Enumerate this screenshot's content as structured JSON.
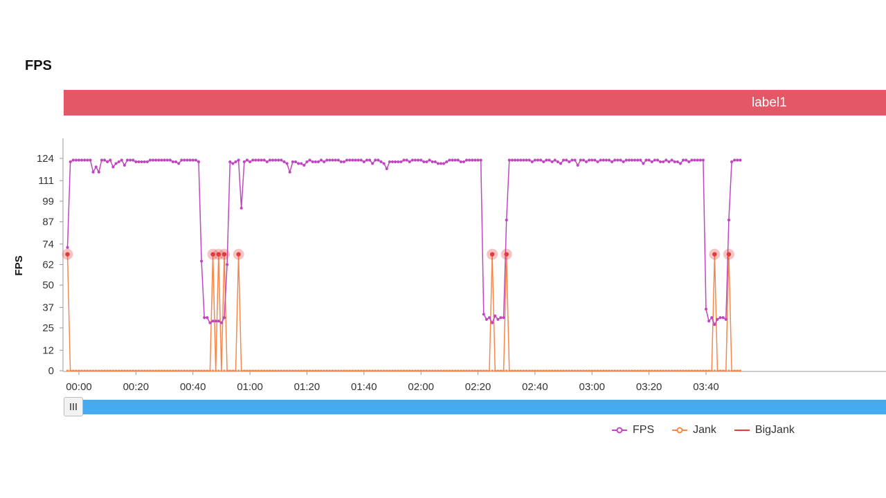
{
  "header": {
    "title": "FPS"
  },
  "label_bar": {
    "text": "label1",
    "color": "#e45766"
  },
  "legend": [
    {
      "name": "FPS",
      "color": "#c046c0",
      "marker": "circle"
    },
    {
      "name": "Jank",
      "color": "#f5874a",
      "marker": "circle"
    },
    {
      "name": "BigJank",
      "color": "#e03c3c",
      "marker": "line"
    }
  ],
  "chart_data": {
    "type": "line",
    "ylabel": "FPS",
    "xlabel": "",
    "yticks": [
      0,
      12,
      25,
      37,
      50,
      62,
      74,
      87,
      99,
      111,
      124
    ],
    "ylim": [
      0,
      124
    ],
    "x_tick_labels": [
      "00:00",
      "00:20",
      "00:40",
      "01:00",
      "01:20",
      "01:40",
      "02:00",
      "02:20",
      "02:40",
      "03:00",
      "03:20",
      "03:40"
    ],
    "x_tick_seconds": [
      0,
      20,
      40,
      60,
      80,
      100,
      120,
      140,
      160,
      180,
      200,
      220
    ],
    "xlim_seconds": [
      -4,
      228
    ],
    "grid": false,
    "legend_position": "bottom-right",
    "series": [
      {
        "name": "FPS",
        "points": [
          [
            -4,
            72
          ],
          [
            -3,
            122
          ],
          [
            -2,
            123
          ],
          [
            -1,
            123
          ],
          [
            0,
            123
          ],
          [
            1,
            123
          ],
          [
            2,
            123
          ],
          [
            3,
            123
          ],
          [
            4,
            123
          ],
          [
            5,
            116
          ],
          [
            6,
            119
          ],
          [
            7,
            116
          ],
          [
            8,
            123
          ],
          [
            9,
            123
          ],
          [
            10,
            122
          ],
          [
            11,
            123
          ],
          [
            12,
            119
          ],
          [
            13,
            121
          ],
          [
            14,
            122
          ],
          [
            15,
            123
          ],
          [
            16,
            120
          ],
          [
            17,
            123
          ],
          [
            18,
            123
          ],
          [
            19,
            123
          ],
          [
            20,
            122
          ],
          [
            21,
            122
          ],
          [
            22,
            122
          ],
          [
            23,
            122
          ],
          [
            24,
            122
          ],
          [
            25,
            123
          ],
          [
            26,
            123
          ],
          [
            27,
            123
          ],
          [
            28,
            123
          ],
          [
            29,
            123
          ],
          [
            30,
            123
          ],
          [
            31,
            123
          ],
          [
            32,
            123
          ],
          [
            33,
            122
          ],
          [
            34,
            122
          ],
          [
            35,
            121
          ],
          [
            36,
            123
          ],
          [
            37,
            123
          ],
          [
            38,
            123
          ],
          [
            39,
            123
          ],
          [
            40,
            123
          ],
          [
            41,
            123
          ],
          [
            42,
            122
          ],
          [
            43,
            64
          ],
          [
            44,
            31
          ],
          [
            45,
            31
          ],
          [
            46,
            28
          ],
          [
            47,
            29
          ],
          [
            48,
            29
          ],
          [
            49,
            29
          ],
          [
            50,
            28
          ],
          [
            51,
            31
          ],
          [
            52,
            62
          ],
          [
            53,
            122
          ],
          [
            54,
            121
          ],
          [
            55,
            122
          ],
          [
            56,
            123
          ],
          [
            57,
            95
          ],
          [
            58,
            122
          ],
          [
            59,
            123
          ],
          [
            60,
            122
          ],
          [
            61,
            123
          ],
          [
            62,
            123
          ],
          [
            63,
            123
          ],
          [
            64,
            123
          ],
          [
            65,
            123
          ],
          [
            66,
            122
          ],
          [
            67,
            123
          ],
          [
            68,
            123
          ],
          [
            69,
            123
          ],
          [
            70,
            123
          ],
          [
            71,
            123
          ],
          [
            72,
            122
          ],
          [
            73,
            121
          ],
          [
            74,
            116
          ],
          [
            75,
            122
          ],
          [
            76,
            122
          ],
          [
            77,
            121
          ],
          [
            78,
            121
          ],
          [
            79,
            120
          ],
          [
            80,
            122
          ],
          [
            81,
            123
          ],
          [
            82,
            122
          ],
          [
            83,
            122
          ],
          [
            84,
            122
          ],
          [
            85,
            123
          ],
          [
            86,
            122
          ],
          [
            87,
            123
          ],
          [
            88,
            123
          ],
          [
            89,
            123
          ],
          [
            90,
            123
          ],
          [
            91,
            123
          ],
          [
            92,
            122
          ],
          [
            93,
            122
          ],
          [
            94,
            123
          ],
          [
            95,
            123
          ],
          [
            96,
            123
          ],
          [
            97,
            123
          ],
          [
            98,
            123
          ],
          [
            99,
            123
          ],
          [
            100,
            122
          ],
          [
            101,
            123
          ],
          [
            102,
            123
          ],
          [
            103,
            121
          ],
          [
            104,
            123
          ],
          [
            105,
            123
          ],
          [
            106,
            122
          ],
          [
            107,
            121
          ],
          [
            108,
            118
          ],
          [
            109,
            122
          ],
          [
            110,
            122
          ],
          [
            111,
            122
          ],
          [
            112,
            122
          ],
          [
            113,
            122
          ],
          [
            114,
            123
          ],
          [
            115,
            123
          ],
          [
            116,
            122
          ],
          [
            117,
            123
          ],
          [
            118,
            123
          ],
          [
            119,
            123
          ],
          [
            120,
            123
          ],
          [
            121,
            122
          ],
          [
            122,
            122
          ],
          [
            123,
            123
          ],
          [
            124,
            122
          ],
          [
            125,
            122
          ],
          [
            126,
            121
          ],
          [
            127,
            121
          ],
          [
            128,
            121
          ],
          [
            129,
            122
          ],
          [
            130,
            123
          ],
          [
            131,
            123
          ],
          [
            132,
            123
          ],
          [
            133,
            123
          ],
          [
            134,
            122
          ],
          [
            135,
            122
          ],
          [
            136,
            123
          ],
          [
            137,
            123
          ],
          [
            138,
            123
          ],
          [
            139,
            123
          ],
          [
            140,
            123
          ],
          [
            141,
            123
          ],
          [
            142,
            33
          ],
          [
            143,
            30
          ],
          [
            144,
            31
          ],
          [
            145,
            28
          ],
          [
            146,
            32
          ],
          [
            147,
            30
          ],
          [
            148,
            31
          ],
          [
            149,
            31
          ],
          [
            150,
            88
          ],
          [
            151,
            123
          ],
          [
            152,
            123
          ],
          [
            153,
            123
          ],
          [
            154,
            123
          ],
          [
            155,
            123
          ],
          [
            156,
            123
          ],
          [
            157,
            123
          ],
          [
            158,
            123
          ],
          [
            159,
            122
          ],
          [
            160,
            123
          ],
          [
            161,
            123
          ],
          [
            162,
            123
          ],
          [
            163,
            122
          ],
          [
            164,
            123
          ],
          [
            165,
            123
          ],
          [
            166,
            122
          ],
          [
            167,
            123
          ],
          [
            168,
            122
          ],
          [
            169,
            121
          ],
          [
            170,
            123
          ],
          [
            171,
            123
          ],
          [
            172,
            122
          ],
          [
            173,
            123
          ],
          [
            174,
            123
          ],
          [
            175,
            120
          ],
          [
            176,
            123
          ],
          [
            177,
            123
          ],
          [
            178,
            122
          ],
          [
            179,
            123
          ],
          [
            180,
            123
          ],
          [
            181,
            123
          ],
          [
            182,
            122
          ],
          [
            183,
            123
          ],
          [
            184,
            123
          ],
          [
            185,
            123
          ],
          [
            186,
            123
          ],
          [
            187,
            122
          ],
          [
            188,
            123
          ],
          [
            189,
            123
          ],
          [
            190,
            123
          ],
          [
            191,
            122
          ],
          [
            192,
            123
          ],
          [
            193,
            123
          ],
          [
            194,
            123
          ],
          [
            195,
            123
          ],
          [
            196,
            123
          ],
          [
            197,
            123
          ],
          [
            198,
            121
          ],
          [
            199,
            123
          ],
          [
            200,
            123
          ],
          [
            201,
            122
          ],
          [
            202,
            123
          ],
          [
            203,
            123
          ],
          [
            204,
            122
          ],
          [
            205,
            122
          ],
          [
            206,
            123
          ],
          [
            207,
            122
          ],
          [
            208,
            123
          ],
          [
            209,
            122
          ],
          [
            210,
            122
          ],
          [
            211,
            121
          ],
          [
            212,
            123
          ],
          [
            213,
            123
          ],
          [
            214,
            122
          ],
          [
            215,
            123
          ],
          [
            216,
            123
          ],
          [
            217,
            123
          ],
          [
            218,
            123
          ],
          [
            219,
            123
          ],
          [
            220,
            36
          ],
          [
            221,
            29
          ],
          [
            222,
            31
          ],
          [
            223,
            27
          ],
          [
            224,
            30
          ],
          [
            225,
            31
          ],
          [
            226,
            31
          ],
          [
            227,
            30
          ],
          [
            228,
            88
          ],
          [
            229,
            122
          ],
          [
            230,
            123
          ],
          [
            231,
            123
          ],
          [
            232,
            123
          ]
        ]
      },
      {
        "name": "Jank",
        "points": [
          [
            -4,
            68
          ],
          [
            -3,
            0
          ],
          [
            43,
            0
          ],
          [
            44,
            0
          ],
          [
            45,
            0
          ],
          [
            46,
            0
          ],
          [
            47,
            68
          ],
          [
            48,
            0
          ],
          [
            49,
            68
          ],
          [
            50,
            0
          ],
          [
            51,
            68
          ],
          [
            52,
            0
          ],
          [
            53,
            0
          ],
          [
            54,
            0
          ],
          [
            55,
            0
          ],
          [
            56,
            68
          ],
          [
            57,
            0
          ],
          [
            141,
            0
          ],
          [
            142,
            0
          ],
          [
            143,
            0
          ],
          [
            144,
            0
          ],
          [
            145,
            68
          ],
          [
            146,
            0
          ],
          [
            147,
            0
          ],
          [
            148,
            0
          ],
          [
            149,
            0
          ],
          [
            150,
            68
          ],
          [
            151,
            0
          ],
          [
            219,
            0
          ],
          [
            220,
            0
          ],
          [
            221,
            0
          ],
          [
            222,
            0
          ],
          [
            223,
            68
          ],
          [
            224,
            0
          ],
          [
            225,
            0
          ],
          [
            226,
            0
          ],
          [
            227,
            0
          ],
          [
            228,
            68
          ],
          [
            229,
            0
          ],
          [
            232,
            0
          ]
        ]
      },
      {
        "name": "BigJank",
        "points": [
          [
            -4,
            68
          ],
          [
            47,
            68
          ],
          [
            49,
            68
          ],
          [
            51,
            68
          ],
          [
            56,
            68
          ],
          [
            145,
            68
          ],
          [
            150,
            68
          ],
          [
            223,
            68
          ],
          [
            228,
            68
          ]
        ]
      }
    ]
  }
}
